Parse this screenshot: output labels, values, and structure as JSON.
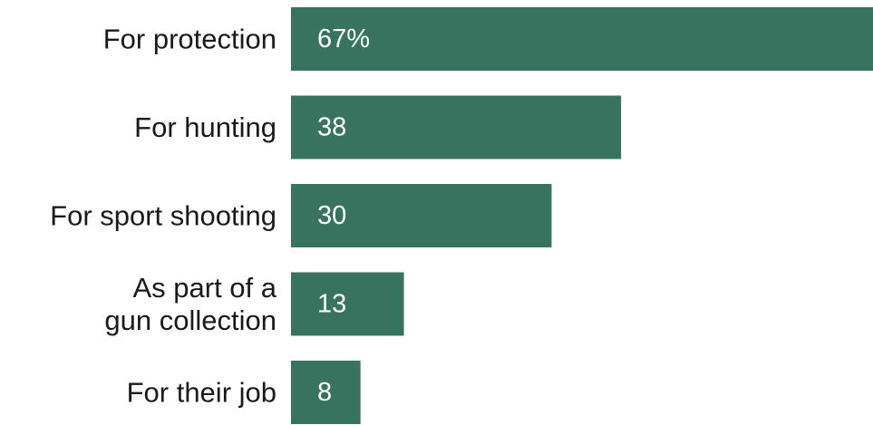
{
  "chart_data": {
    "type": "bar",
    "orientation": "horizontal",
    "categories": [
      [
        "For protection"
      ],
      [
        "For hunting"
      ],
      [
        "For sport shooting"
      ],
      [
        "As part of a",
        "gun collection"
      ],
      [
        "For their job"
      ]
    ],
    "values": [
      67,
      38,
      30,
      13,
      8
    ],
    "value_labels": [
      "67%",
      "38",
      "30",
      "13",
      "8"
    ],
    "xlim": [
      0,
      67
    ],
    "grid": false,
    "legend": "none",
    "bar_color": "#37735f"
  }
}
